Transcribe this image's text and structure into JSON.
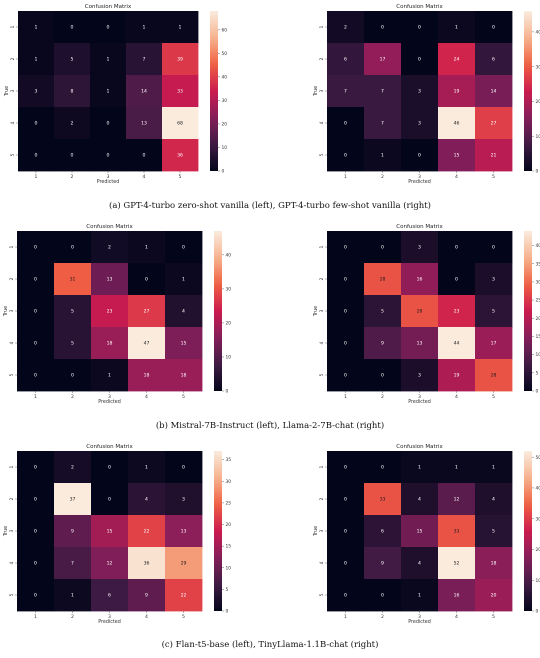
{
  "captions": [
    "(a) GPT-4-turbo zero-shot vanilla (left), GPT-4-turbo few-shot vanilla (right)",
    "(b) Mistral-7B-Instruct (left), Llama-2-7B-chat (right)",
    "(c) Flan-t5-base (left), TinyLlama-1.1B-chat (right)"
  ],
  "colormap": [
    "#03051a",
    "#3f1b44",
    "#841e5a",
    "#cb1b4f",
    "#f06043",
    "#f6b48f",
    "#faebdd"
  ],
  "chart_data": [
    {
      "type": "heatmap",
      "title": "Confusion Matrix",
      "xlabel": "Predicted",
      "ylabel": "True",
      "x": [
        "1",
        "2",
        "3",
        "4",
        "5"
      ],
      "y": [
        "1",
        "2",
        "3",
        "4",
        "5"
      ],
      "values": [
        [
          1,
          0,
          0,
          1,
          1
        ],
        [
          1,
          5,
          1,
          7,
          39
        ],
        [
          3,
          8,
          1,
          14,
          33
        ],
        [
          0,
          2,
          0,
          13,
          68
        ],
        [
          0,
          0,
          0,
          0,
          36
        ]
      ],
      "vmax": 68,
      "colorbar_ticks": [
        0,
        10,
        20,
        30,
        40,
        50,
        60
      ]
    },
    {
      "type": "heatmap",
      "title": "Confusion Matrix",
      "xlabel": "Predicted",
      "ylabel": "True",
      "x": [
        "1",
        "2",
        "3",
        "4",
        "5"
      ],
      "y": [
        "1",
        "2",
        "3",
        "4",
        "5"
      ],
      "values": [
        [
          2,
          0,
          0,
          1,
          0
        ],
        [
          6,
          17,
          0,
          24,
          6
        ],
        [
          7,
          7,
          3,
          19,
          14
        ],
        [
          0,
          7,
          3,
          46,
          27
        ],
        [
          0,
          1,
          0,
          15,
          21
        ]
      ],
      "vmax": 46,
      "colorbar_ticks": [
        0,
        10,
        20,
        30,
        40
      ]
    },
    {
      "type": "heatmap",
      "title": "Confusion Matrix",
      "xlabel": "Predicted",
      "ylabel": "True",
      "x": [
        "1",
        "2",
        "3",
        "4",
        "5"
      ],
      "y": [
        "1",
        "2",
        "3",
        "4",
        "5"
      ],
      "values": [
        [
          0,
          0,
          2,
          1,
          0
        ],
        [
          0,
          31,
          13,
          0,
          1
        ],
        [
          0,
          5,
          23,
          27,
          4
        ],
        [
          0,
          5,
          18,
          47,
          15
        ],
        [
          0,
          0,
          1,
          18,
          18
        ]
      ],
      "vmax": 47,
      "colorbar_ticks": [
        0,
        10,
        20,
        30,
        40
      ]
    },
    {
      "type": "heatmap",
      "title": "Confusion Matrix",
      "xlabel": "Predicted",
      "ylabel": "True",
      "x": [
        "1",
        "2",
        "3",
        "4",
        "5"
      ],
      "y": [
        "1",
        "2",
        "3",
        "4",
        "5"
      ],
      "values": [
        [
          0,
          0,
          3,
          0,
          0
        ],
        [
          0,
          28,
          16,
          0,
          3
        ],
        [
          0,
          5,
          28,
          23,
          5
        ],
        [
          0,
          9,
          13,
          44,
          17
        ],
        [
          0,
          0,
          3,
          19,
          28
        ]
      ],
      "vmax": 44,
      "colorbar_ticks": [
        0,
        5,
        10,
        15,
        20,
        25,
        30,
        35,
        40
      ]
    },
    {
      "type": "heatmap",
      "title": "Confusion Matrix",
      "xlabel": "Predicted",
      "ylabel": "True",
      "x": [
        "1",
        "2",
        "3",
        "4",
        "5"
      ],
      "y": [
        "1",
        "2",
        "3",
        "4",
        "5"
      ],
      "values": [
        [
          0,
          2,
          0,
          1,
          0
        ],
        [
          0,
          37,
          0,
          4,
          3
        ],
        [
          0,
          9,
          15,
          22,
          13
        ],
        [
          0,
          7,
          12,
          36,
          29
        ],
        [
          0,
          1,
          6,
          9,
          22
        ]
      ],
      "vmax": 37,
      "colorbar_ticks": [
        0,
        5,
        10,
        15,
        20,
        25,
        30,
        35
      ]
    },
    {
      "type": "heatmap",
      "title": "Confusion Matrix",
      "xlabel": "Predicted",
      "ylabel": "True",
      "x": [
        "1",
        "2",
        "3",
        "4",
        "5"
      ],
      "y": [
        "1",
        "2",
        "3",
        "4",
        "5"
      ],
      "values": [
        [
          0,
          0,
          1,
          1,
          1
        ],
        [
          0,
          33,
          4,
          12,
          4
        ],
        [
          0,
          6,
          15,
          33,
          5
        ],
        [
          0,
          9,
          4,
          52,
          18
        ],
        [
          0,
          0,
          1,
          16,
          20
        ]
      ],
      "vmax": 52,
      "colorbar_ticks": [
        0,
        10,
        20,
        30,
        40,
        50
      ]
    }
  ]
}
